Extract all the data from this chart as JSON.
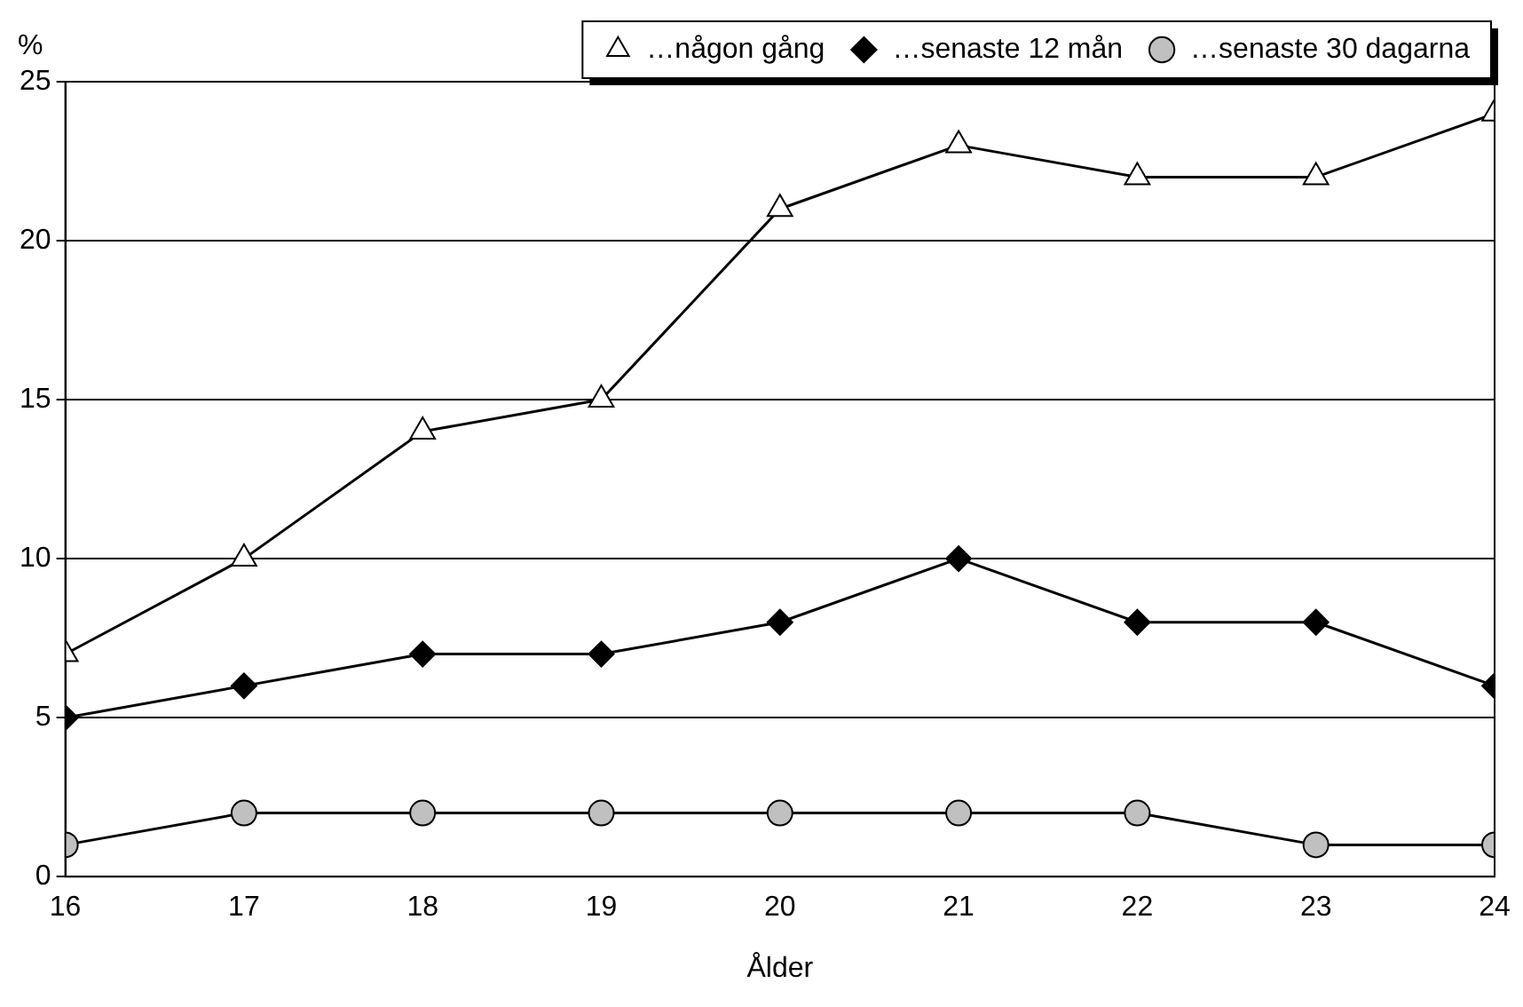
{
  "chart_data": {
    "type": "line",
    "xlabel": "Ålder",
    "ylabel": "%",
    "x": [
      16,
      17,
      18,
      19,
      20,
      21,
      22,
      23,
      24
    ],
    "series": [
      {
        "name": "…någon gång",
        "color": "#ffffff",
        "marker": "triangle",
        "values": [
          7,
          10,
          14,
          15,
          21,
          23,
          22,
          22,
          24
        ]
      },
      {
        "name": "…senaste 12 mån",
        "color": "#000000",
        "marker": "diamond",
        "values": [
          5,
          6,
          7,
          7,
          8,
          10,
          8,
          8,
          6
        ]
      },
      {
        "name": "…senaste 30 dagarna",
        "color": "#c0c0c0",
        "marker": "circle",
        "values": [
          1,
          2,
          2,
          2,
          2,
          2,
          2,
          1,
          1
        ]
      }
    ],
    "xlim": [
      16,
      24
    ],
    "xticks": [
      16,
      17,
      18,
      19,
      20,
      21,
      22,
      23,
      24
    ],
    "ylim": [
      0,
      25
    ],
    "yticks": [
      0,
      5,
      10,
      15,
      20,
      25
    ],
    "grid": "y",
    "legend": "top right",
    "line_style": "solid"
  }
}
